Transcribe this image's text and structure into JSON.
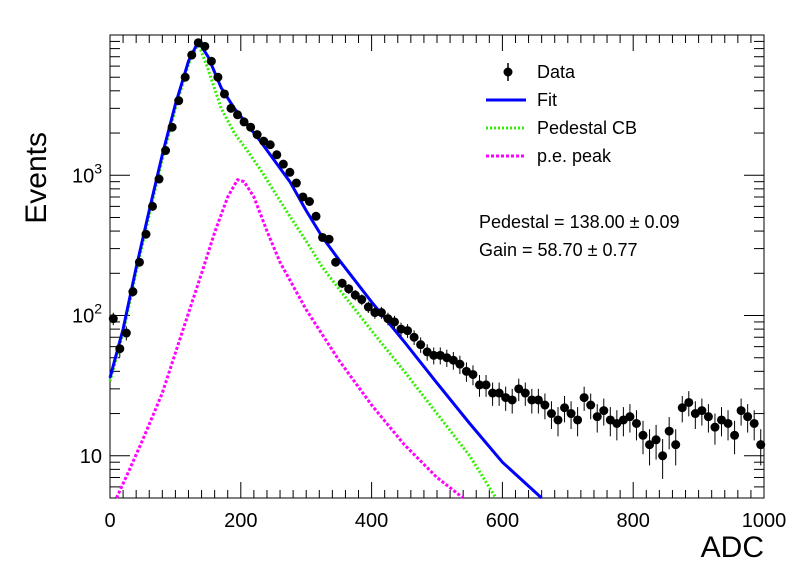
{
  "chart_data": {
    "type": "scatter",
    "xlabel": "ADC",
    "ylabel": "Events",
    "xlim": [
      0,
      1000
    ],
    "ylim": [
      5,
      10000
    ],
    "yscale": "log",
    "grid": false,
    "legend_position": "top-right",
    "x_ticks": [
      "0",
      "200",
      "400",
      "600",
      "800",
      "1000"
    ],
    "y_ticks": [
      {
        "value": 10,
        "label": "10",
        "exp": ""
      },
      {
        "value": 100,
        "label": "10",
        "exp": "2"
      },
      {
        "value": 1000,
        "label": "10",
        "exp": "3"
      }
    ],
    "annotations": {
      "pedestal": "Pedestal = 138.00 ± 0.09",
      "gain": "Gain = 58.70 ± 0.77"
    },
    "series": [
      {
        "name": "Data",
        "kind": "points-with-errors",
        "color": "#000000",
        "x": [
          5,
          15,
          25,
          35,
          45,
          55,
          65,
          75,
          85,
          95,
          105,
          115,
          125,
          135,
          145,
          155,
          165,
          175,
          185,
          195,
          205,
          215,
          225,
          235,
          245,
          255,
          265,
          275,
          285,
          295,
          305,
          315,
          325,
          335,
          345,
          355,
          365,
          375,
          385,
          395,
          405,
          415,
          425,
          435,
          445,
          455,
          465,
          475,
          485,
          495,
          505,
          515,
          525,
          535,
          545,
          555,
          565,
          575,
          585,
          595,
          605,
          615,
          625,
          635,
          645,
          655,
          665,
          675,
          685,
          695,
          705,
          715,
          725,
          735,
          745,
          755,
          765,
          775,
          785,
          795,
          805,
          815,
          825,
          835,
          845,
          855,
          865,
          875,
          885,
          895,
          905,
          915,
          925,
          935,
          945,
          955,
          965,
          975,
          985,
          995
        ],
        "y": [
          95,
          58,
          75,
          148,
          240,
          380,
          600,
          940,
          1500,
          2200,
          3400,
          5000,
          7200,
          8800,
          8300,
          6500,
          5000,
          3800,
          3000,
          2700,
          2400,
          2200,
          1950,
          1750,
          1650,
          1400,
          1200,
          1050,
          880,
          700,
          650,
          510,
          360,
          350,
          240,
          170,
          155,
          140,
          130,
          115,
          105,
          105,
          95,
          90,
          80,
          78,
          70,
          62,
          55,
          52,
          52,
          50,
          48,
          45,
          40,
          38,
          32,
          32,
          28,
          28,
          26,
          25,
          30,
          28,
          25,
          25,
          23,
          20,
          18,
          22,
          20,
          18,
          26,
          23,
          19,
          21,
          18,
          17,
          18,
          19,
          17,
          14,
          12,
          13,
          10,
          15,
          12,
          22,
          24,
          20,
          21,
          19,
          16,
          18,
          17,
          14,
          21,
          19,
          17,
          12
        ]
      },
      {
        "name": "Fit",
        "kind": "line",
        "color": "#0000ff",
        "x": [
          0,
          20,
          40,
          60,
          80,
          100,
          120,
          135,
          150,
          170,
          190,
          210,
          230,
          250,
          275,
          300,
          325,
          350,
          400,
          450,
          500,
          550,
          600,
          660
        ],
        "y": [
          36,
          80,
          220,
          560,
          1400,
          3200,
          6500,
          9000,
          7000,
          4200,
          3000,
          2300,
          1750,
          1300,
          900,
          560,
          360,
          250,
          125,
          65,
          33,
          17,
          9,
          5
        ]
      },
      {
        "name": "Pedestal CB",
        "kind": "dotted-line",
        "color": "#33ee00",
        "x": [
          0,
          20,
          40,
          60,
          80,
          100,
          120,
          135,
          150,
          170,
          190,
          210,
          230,
          250,
          275,
          300,
          325,
          350,
          400,
          450,
          500,
          550,
          590
        ],
        "y": [
          34,
          75,
          205,
          520,
          1300,
          3000,
          6200,
          8700,
          5700,
          3000,
          2000,
          1500,
          1100,
          780,
          510,
          340,
          220,
          155,
          78,
          40,
          20,
          10,
          5
        ]
      },
      {
        "name": "p.e. peak",
        "kind": "dotted-line",
        "color": "#ff00ff",
        "x": [
          10,
          30,
          50,
          80,
          110,
          140,
          160,
          180,
          195,
          205,
          220,
          240,
          260,
          300,
          350,
          400,
          450,
          500,
          540
        ],
        "y": [
          5,
          8,
          13,
          28,
          75,
          200,
          390,
          700,
          930,
          900,
          700,
          400,
          240,
          110,
          48,
          23,
          12,
          7,
          5
        ]
      }
    ]
  }
}
